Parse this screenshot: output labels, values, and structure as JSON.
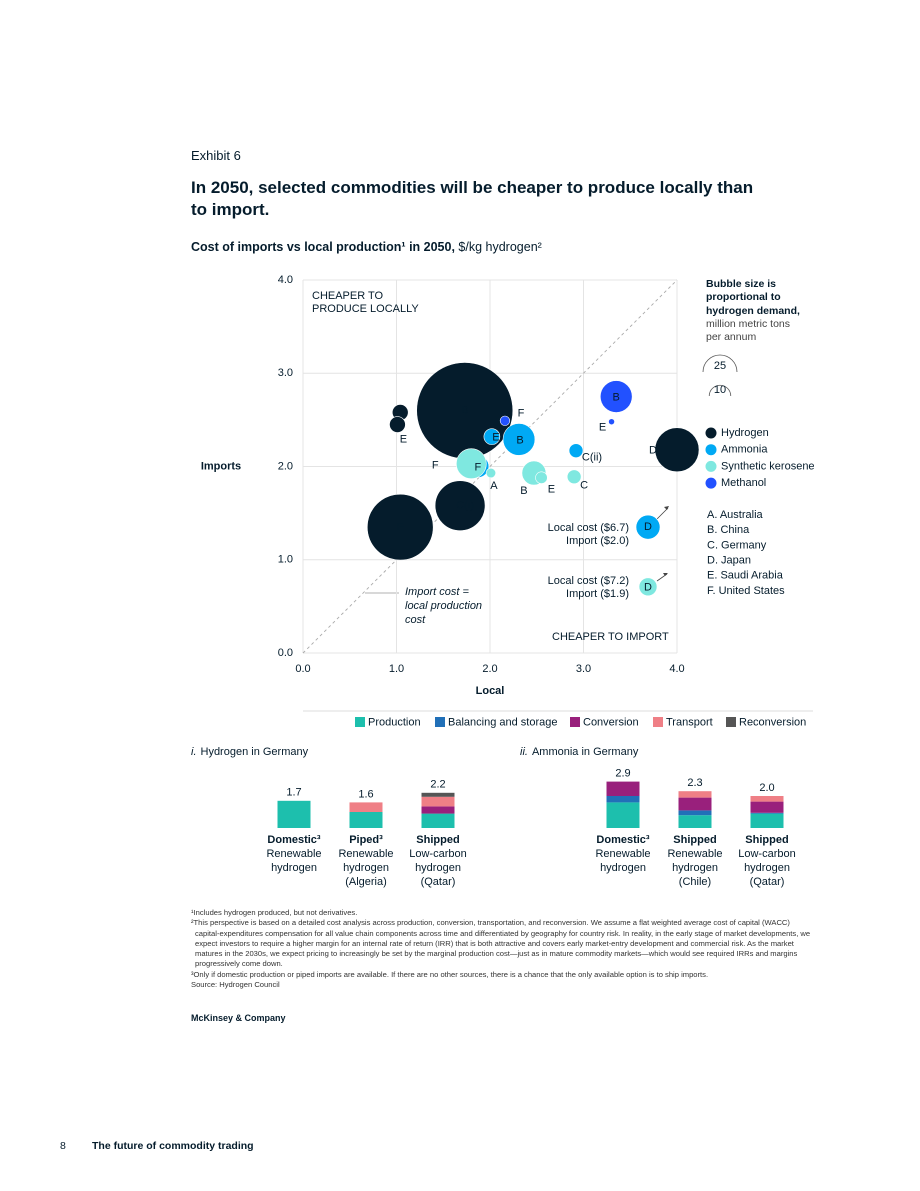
{
  "header": {
    "exhibit": "Exhibit 6",
    "title": "In 2050, selected commodities will be cheaper to produce locally than to import."
  },
  "chart_data": [
    {
      "type": "scatter",
      "title": "Cost of imports vs local production¹ in 2050,",
      "unit": "$/kg hydrogen²",
      "xlabel": "Local",
      "ylabel": "Imports",
      "xlim": [
        0,
        4
      ],
      "ylim": [
        0,
        4
      ],
      "xticks": [
        {
          "value": 0,
          "label": "0.0"
        },
        {
          "value": 1,
          "label": "1.0"
        },
        {
          "value": 2,
          "label": "2.0"
        },
        {
          "value": 3,
          "label": "3.0"
        },
        {
          "value": 4,
          "label": "4.0"
        }
      ],
      "yticks": [
        {
          "value": 0,
          "label": "0.0"
        },
        {
          "value": 1,
          "label": "1.0"
        },
        {
          "value": 2,
          "label": "2.0"
        },
        {
          "value": 3,
          "label": "3.0"
        },
        {
          "value": 4,
          "label": "4.0"
        }
      ],
      "grid": true,
      "diagonal": true,
      "series": [
        {
          "name": "Hydrogen",
          "color": "#051c2c",
          "labels": [
            "A",
            "B",
            "C(i)",
            "D",
            "E",
            "F"
          ],
          "x": [
            1.04,
            1.73,
            1.68,
            4.0,
            1.01,
            1.04
          ],
          "values": [
            2.58,
            2.6,
            1.58,
            2.18,
            2.45,
            1.35
          ],
          "sizes": [
            5.5,
            200,
            54,
            42,
            5.5,
            94
          ]
        },
        {
          "name": "Ammonia",
          "color": "#00a9f4",
          "labels": [
            "B",
            "C(ii)",
            "D",
            "E",
            "F"
          ],
          "x": [
            2.31,
            2.92,
            3.69,
            2.02,
            1.87
          ],
          "values": [
            2.29,
            2.17,
            1.35,
            2.32,
            2.0
          ],
          "sizes": [
            22,
            4.2,
            12.5,
            5.5,
            10.5
          ]
        },
        {
          "name": "Synthetic kerosene",
          "color": "#7fe8e0",
          "labels": [
            "A",
            "B",
            "C",
            "D",
            "E",
            "F"
          ],
          "x": [
            2.01,
            2.47,
            2.9,
            3.69,
            2.55,
            1.8
          ],
          "values": [
            1.93,
            1.93,
            1.89,
            0.71,
            1.88,
            2.03
          ],
          "sizes": [
            2,
            12.5,
            4.2,
            7,
            3,
            19.5
          ]
        },
        {
          "name": "Methanol",
          "color": "#2251ff",
          "labels": [
            "B",
            "E",
            "F"
          ],
          "x": [
            3.35,
            3.3,
            2.16
          ],
          "values": [
            2.75,
            2.48,
            2.49
          ],
          "sizes": [
            22,
            0.8,
            2
          ]
        }
      ],
      "size_legend": {
        "title": [
          "Bubble size is",
          "proportional to",
          "hydrogen demand,"
        ],
        "unit": [
          "million metric tons",
          "per annum"
        ],
        "sizes": [
          25,
          10
        ]
      },
      "key": [
        "A. Australia",
        "B. China",
        "C. Germany",
        "D. Japan",
        "E. Saudi Arabia",
        "F. United States"
      ],
      "annotations": {
        "upper": [
          "CHEAPER TO",
          "PRODUCE LOCALLY"
        ],
        "lower": [
          "CHEAPER TO IMPORT"
        ],
        "diagonal": [
          "Import cost =",
          "local production",
          "cost"
        ],
        "offscale": [
          [
            "Local cost ($6.7)",
            "Import ($2.0)"
          ],
          [
            "Local cost ($7.2)",
            "Import ($1.9)"
          ]
        ]
      }
    },
    {
      "type": "bar",
      "stacked": true,
      "title_prefix": "i.",
      "title": "Hydrogen in Germany",
      "categories": [
        "Domestic³",
        "Piped³",
        "Shipped"
      ],
      "subcategories": [
        "Renewable hydrogen",
        "Renewable hydrogen (Algeria)",
        "Low-carbon hydrogen (Qatar)"
      ],
      "totals": [
        1.7,
        1.6,
        2.2
      ],
      "series": [
        {
          "name": "Production",
          "color": "#1dbfad",
          "values": [
            1.7,
            1.0,
            0.9
          ]
        },
        {
          "name": "Balancing and storage",
          "color": "#2170b8",
          "values": [
            0,
            0,
            0
          ]
        },
        {
          "name": "Conversion",
          "color": "#99207c",
          "values": [
            0,
            0,
            0.45
          ]
        },
        {
          "name": "Transport",
          "color": "#ef7f86",
          "values": [
            0,
            0.6,
            0.6
          ]
        },
        {
          "name": "Reconversion",
          "color": "#555555",
          "values": [
            0,
            0,
            0.25
          ]
        }
      ]
    },
    {
      "type": "bar",
      "stacked": true,
      "title_prefix": "ii.",
      "title": "Ammonia in Germany",
      "categories": [
        "Domestic³",
        "Shipped",
        "Shipped"
      ],
      "subcategories": [
        "Renewable hydrogen",
        "Renewable hydrogen (Chile)",
        "Low-carbon hydrogen (Qatar)"
      ],
      "totals": [
        2.9,
        2.3,
        2.0
      ],
      "total_labels": [
        "2.9",
        "2.3",
        "2.0"
      ],
      "series": [
        {
          "color": "#1dbfad",
          "values": [
            1.6,
            0.8,
            0.9
          ]
        },
        {
          "color": "#2170b8",
          "values": [
            0.4,
            0.3,
            0.05
          ]
        },
        {
          "color": "#99207c",
          "values": [
            0.9,
            0.8,
            0.7
          ]
        },
        {
          "color": "#ef7f86",
          "values": [
            0,
            0.4,
            0.35
          ]
        },
        {
          "color": "#555555",
          "values": [
            0,
            0,
            0
          ]
        }
      ]
    }
  ],
  "footnotes": [
    "¹Includes hydrogen produced, but not derivatives.",
    "²This perspective is based on a detailed cost analysis across production, conversion, transportation, and reconversion. We assume a flat weighted average cost of capital (WACC) capital-expenditures compensation for all value chain components across time and differentiated by geography for country risk. In reality, in the early stage of market developments, we expect investors to require a higher margin for an internal rate of return (IRR) that is both attractive and covers early market-entry development and commercial risk. As the market matures in the 2030s, we expect pricing to increasingly be set by the marginal production cost—just as in mature commodity markets—which would see required IRRs and margins progressively come down.",
    "³Only if domestic production or piped imports are available. If there are no other sources, there is a chance that the only available option is to ship imports."
  ],
  "source": "Source: Hydrogen Council",
  "brand": "McKinsey & Company",
  "footer": {
    "page": "8",
    "publication": "The future of commodity trading"
  }
}
